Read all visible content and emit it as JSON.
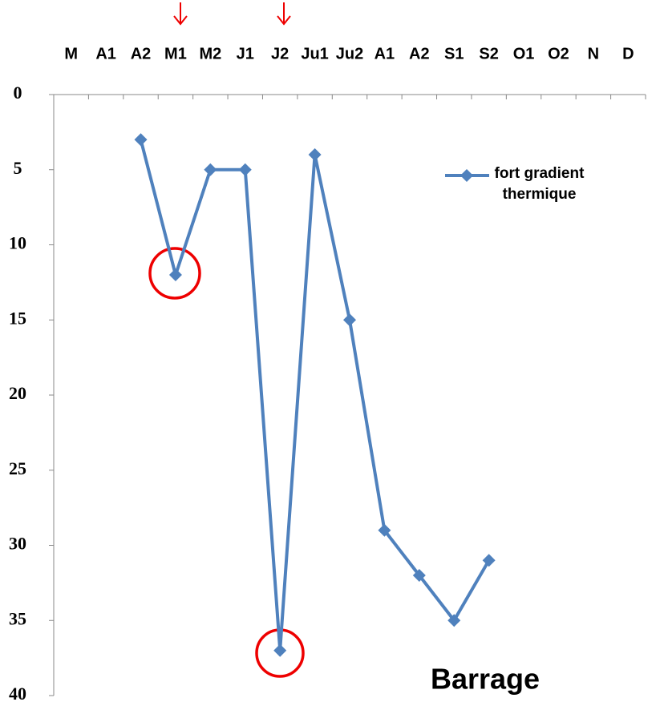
{
  "chart_data": {
    "type": "line",
    "categories": [
      "M",
      "A1",
      "A2",
      "M1",
      "M2",
      "J1",
      "J2",
      "Ju1",
      "Ju2",
      "A1",
      "A2",
      "S1",
      "S2",
      "O1",
      "O2",
      "N",
      "D"
    ],
    "series": [
      {
        "name": "fort gradient thermique",
        "color": "#4f81bd",
        "values": [
          null,
          null,
          3,
          12,
          5,
          5,
          37,
          4,
          15,
          29,
          32,
          35,
          31,
          null,
          null,
          null,
          null
        ]
      }
    ],
    "ylim": [
      0,
      40
    ],
    "yticks": [
      0,
      5,
      10,
      15,
      20,
      25,
      30,
      35,
      40
    ],
    "y_inverted": true,
    "annotation": "Barrage"
  }
}
